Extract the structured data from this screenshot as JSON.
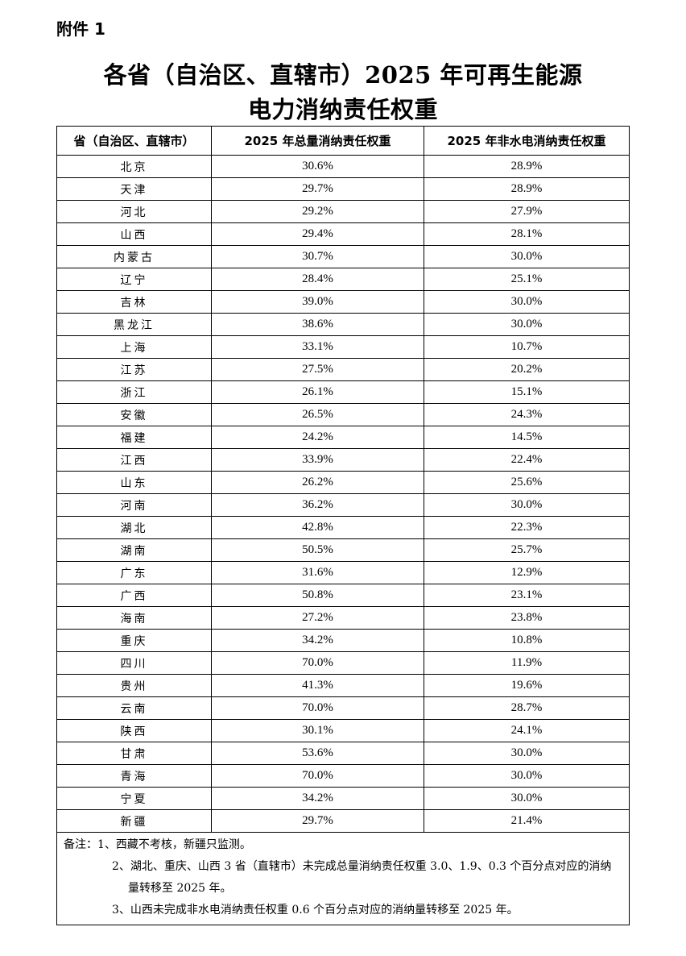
{
  "attachment_label": "附件 1",
  "title_line1": "各省（自治区、直辖市）2025 年可再生能源",
  "title_line2": "电力消纳责任权重",
  "table": {
    "headers": [
      "省（自治区、直辖市）",
      "2025 年总量消纳责任权重",
      "2025 年非水电消纳责任权重"
    ],
    "rows": [
      [
        "北京",
        "30.6%",
        "28.9%"
      ],
      [
        "天津",
        "29.7%",
        "28.9%"
      ],
      [
        "河北",
        "29.2%",
        "27.9%"
      ],
      [
        "山西",
        "29.4%",
        "28.1%"
      ],
      [
        "内蒙古",
        "30.7%",
        "30.0%"
      ],
      [
        "辽宁",
        "28.4%",
        "25.1%"
      ],
      [
        "吉林",
        "39.0%",
        "30.0%"
      ],
      [
        "黑龙江",
        "38.6%",
        "30.0%"
      ],
      [
        "上海",
        "33.1%",
        "10.7%"
      ],
      [
        "江苏",
        "27.5%",
        "20.2%"
      ],
      [
        "浙江",
        "26.1%",
        "15.1%"
      ],
      [
        "安徽",
        "26.5%",
        "24.3%"
      ],
      [
        "福建",
        "24.2%",
        "14.5%"
      ],
      [
        "江西",
        "33.9%",
        "22.4%"
      ],
      [
        "山东",
        "26.2%",
        "25.6%"
      ],
      [
        "河南",
        "36.2%",
        "30.0%"
      ],
      [
        "湖北",
        "42.8%",
        "22.3%"
      ],
      [
        "湖南",
        "50.5%",
        "25.7%"
      ],
      [
        "广东",
        "31.6%",
        "12.9%"
      ],
      [
        "广西",
        "50.8%",
        "23.1%"
      ],
      [
        "海南",
        "27.2%",
        "23.8%"
      ],
      [
        "重庆",
        "34.2%",
        "10.8%"
      ],
      [
        "四川",
        "70.0%",
        "11.9%"
      ],
      [
        "贵州",
        "41.3%",
        "19.6%"
      ],
      [
        "云南",
        "70.0%",
        "28.7%"
      ],
      [
        "陕西",
        "30.1%",
        "24.1%"
      ],
      [
        "甘肃",
        "53.6%",
        "30.0%"
      ],
      [
        "青海",
        "70.0%",
        "30.0%"
      ],
      [
        "宁夏",
        "34.2%",
        "30.0%"
      ],
      [
        "新疆",
        "29.7%",
        "21.4%"
      ]
    ]
  },
  "notes": [
    "备注：1、西藏不考核，新疆只监测。",
    "2、湖北、重庆、山西 3 省（直辖市）未完成总量消纳责任权重 3.0、1.9、0.3 个百分点对应的消纳量转移至 2025 年。",
    "3、山西未完成非水电消纳责任权重 0.6 个百分点对应的消纳量转移至 2025 年。"
  ]
}
